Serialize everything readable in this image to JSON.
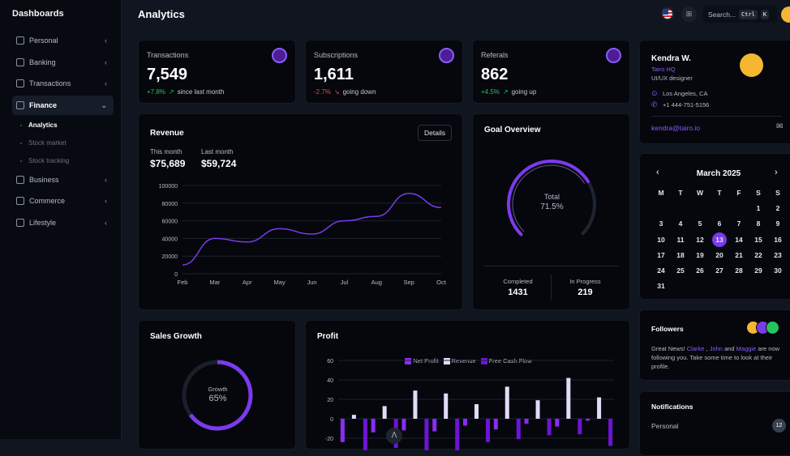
{
  "sidebar": {
    "title": "Dashboards",
    "items": [
      {
        "label": "Personal",
        "icon": "cube-icon"
      },
      {
        "label": "Banking",
        "icon": "building-icon"
      },
      {
        "label": "Transactions",
        "icon": "card-icon"
      },
      {
        "label": "Finance",
        "icon": "chart-icon",
        "expanded": true
      },
      {
        "label": "Business",
        "icon": "briefcase-icon"
      },
      {
        "label": "Commerce",
        "icon": "basket-icon"
      },
      {
        "label": "Lifestyle",
        "icon": "leaf-icon"
      }
    ],
    "finance_sub": [
      "Analytics",
      "Stock market",
      "Stock tracking"
    ]
  },
  "header": {
    "title": "Analytics",
    "search_placeholder": "Search...",
    "kbd1": "Ctrl",
    "kbd2": "K"
  },
  "stats": [
    {
      "label": "Transactions",
      "value": "7,549",
      "change": "+7.8%",
      "note": "since last month",
      "positive": true
    },
    {
      "label": "Subscriptions",
      "value": "1,611",
      "change": "-2.7%",
      "note": "going down",
      "positive": false
    },
    {
      "label": "Referals",
      "value": "862",
      "change": "+4.5%",
      "note": "going up",
      "positive": true
    }
  ],
  "revenue": {
    "title": "Revenue",
    "details": "Details",
    "this_month_label": "This month",
    "this_month": "$75,689",
    "last_month_label": "Last month",
    "last_month": "$59,724"
  },
  "goal": {
    "title": "Goal Overview",
    "center_label": "Total",
    "percent": "71.5%",
    "value": 71.5,
    "completed_label": "Completed",
    "completed": "1431",
    "progress_label": "In Progress",
    "progress": "219"
  },
  "sales": {
    "title": "Sales Growth",
    "label": "Growth",
    "percent": "65%",
    "value": 65
  },
  "profile": {
    "name": "Kendra W.",
    "company": "Tairo HQ",
    "role": "UI/UX designer",
    "location": "Los Angeles, CA",
    "phone": "+1 444-751-5156",
    "email": "kendra@tairo.io"
  },
  "calendar": {
    "month": "March 2025",
    "weekdays": [
      "M",
      "T",
      "W",
      "T",
      "F",
      "S",
      "S"
    ],
    "offset": 5,
    "days": 31,
    "selected": 13
  },
  "followers": {
    "title": "Followers",
    "pre": "Great News! ",
    "n1": "Clarke",
    "sep1": " , ",
    "n2": "John",
    "sep2": " and ",
    "n3": "Maggie",
    "post": " are now following you. Take some time to look at their profile."
  },
  "notifications": {
    "title": "Notifications",
    "items": [
      {
        "label": "Personal",
        "count": "12"
      }
    ]
  },
  "colors": {
    "accent": "#7c3aed",
    "positive": "#22c55e",
    "negative": "#ef4444",
    "card": "#05070d"
  },
  "chart_data": [
    {
      "type": "line",
      "title": "Revenue",
      "categories": [
        "Feb",
        "Mar",
        "Apr",
        "May",
        "Jun",
        "Jul",
        "Aug",
        "Sep",
        "Oct"
      ],
      "values": [
        10000,
        40000,
        36000,
        51000,
        45000,
        60000,
        65000,
        91000,
        75000
      ],
      "ylim": [
        0,
        100000
      ],
      "yticks": [
        0,
        20000,
        40000,
        60000,
        80000,
        100000
      ],
      "grid": true
    },
    {
      "type": "bar",
      "title": "Profit",
      "legend_position": "top",
      "ylim": [
        -40,
        60
      ],
      "yticks": [
        -20,
        0,
        20,
        40,
        60
      ],
      "series": [
        {
          "name": "Net Profit",
          "color": "#8b2cf5",
          "values": [
            -24,
            -14,
            -12,
            -13,
            -7,
            -11,
            -5,
            -8,
            -2
          ]
        },
        {
          "name": "Revenue",
          "color": "#e0dcf7",
          "values": [
            4,
            13,
            29,
            26,
            15,
            33,
            19,
            42,
            22
          ]
        },
        {
          "name": "Free Cash Flow",
          "color": "#6d14d6",
          "values": [
            -35,
            -30,
            -33,
            -33,
            -24,
            -21,
            -17,
            -16,
            -28
          ]
        }
      ]
    }
  ]
}
